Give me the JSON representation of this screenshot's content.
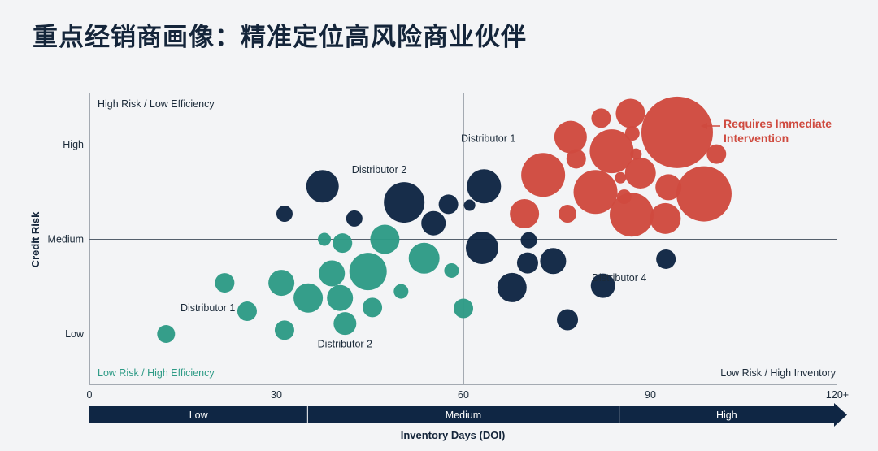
{
  "title": "重点经销商画像：精准定位高风险商业伙伴",
  "colors": {
    "navy": "#0f2644",
    "teal": "#2e9b86",
    "red": "#cf4a3f",
    "axis": "#55606d"
  },
  "chart_data": {
    "type": "scatter",
    "subtype": "bubble",
    "xlabel": "Inventory Days (DOI)",
    "ylabel": "Credit Risk",
    "xlim": [
      0,
      120
    ],
    "x_ticks": [
      "0",
      "30",
      "60",
      "90",
      "120+"
    ],
    "y_ticks": [
      "Low",
      "Medium",
      "High"
    ],
    "x_bands": [
      {
        "label": "Low",
        "from": 0,
        "to": 35
      },
      {
        "label": "Medium",
        "from": 35,
        "to": 85
      },
      {
        "label": "High",
        "from": 85,
        "to": 120
      }
    ],
    "quadrants": {
      "top_left": "High Risk / Low Efficiency",
      "bottom_left": "Low Risk / High Efficiency",
      "bottom_right": "Low Risk / High Inventory"
    },
    "callout": "Requires Immediate\nIntervention",
    "labels": [
      {
        "text": "Distributor 1",
        "x": 64,
        "y": 2.03
      },
      {
        "text": "Distributor 2",
        "x": 46.5,
        "y": 1.7
      },
      {
        "text": "Distributor 4",
        "x": 85,
        "y": 0.56
      },
      {
        "text": "Distributor 1",
        "x": 19,
        "y": 0.24
      },
      {
        "text": "Distributor 2",
        "x": 41,
        "y": -0.14
      }
    ],
    "series": [
      {
        "group": "teal",
        "points": [
          {
            "x": 12.3,
            "y": 0.0,
            "r": 11
          },
          {
            "x": 21.7,
            "y": 0.54,
            "r": 12
          },
          {
            "x": 25.3,
            "y": 0.24,
            "r": 12
          },
          {
            "x": 30.8,
            "y": 0.54,
            "r": 16
          },
          {
            "x": 31.3,
            "y": 0.04,
            "r": 12
          },
          {
            "x": 35.1,
            "y": 0.38,
            "r": 18
          },
          {
            "x": 37.7,
            "y": 0.0,
            "r": 0
          },
          {
            "x": 37.7,
            "y": 1.0,
            "r": 8
          },
          {
            "x": 38.9,
            "y": 0.64,
            "r": 16
          },
          {
            "x": 40.2,
            "y": 0.38,
            "r": 16
          },
          {
            "x": 40.6,
            "y": 0.96,
            "r": 12
          },
          {
            "x": 41.0,
            "y": 0.11,
            "r": 14
          },
          {
            "x": 44.7,
            "y": 0.66,
            "r": 23
          },
          {
            "x": 45.4,
            "y": 0.28,
            "r": 12
          },
          {
            "x": 47.4,
            "y": 1.0,
            "r": 18
          },
          {
            "x": 50.0,
            "y": 0.45,
            "r": 9
          },
          {
            "x": 53.7,
            "y": 0.8,
            "r": 19
          },
          {
            "x": 58.1,
            "y": 0.67,
            "r": 9
          },
          {
            "x": 60.0,
            "y": 0.27,
            "r": 12
          }
        ]
      },
      {
        "group": "navy",
        "points": [
          {
            "x": 31.3,
            "y": 1.27,
            "r": 10
          },
          {
            "x": 37.4,
            "y": 1.56,
            "r": 20
          },
          {
            "x": 42.5,
            "y": 1.22,
            "r": 10
          },
          {
            "x": 50.5,
            "y": 1.39,
            "r": 25
          },
          {
            "x": 55.2,
            "y": 1.17,
            "r": 15
          },
          {
            "x": 57.6,
            "y": 1.37,
            "r": 12
          },
          {
            "x": 61.0,
            "y": 1.36,
            "r": 7
          },
          {
            "x": 63.0,
            "y": 0.91,
            "r": 20
          },
          {
            "x": 63.3,
            "y": 1.56,
            "r": 21
          },
          {
            "x": 67.8,
            "y": 0.49,
            "r": 18
          },
          {
            "x": 70.5,
            "y": 0.99,
            "r": 10
          },
          {
            "x": 70.3,
            "y": 0.75,
            "r": 13
          },
          {
            "x": 74.4,
            "y": 0.77,
            "r": 16
          },
          {
            "x": 76.7,
            "y": 0.15,
            "r": 13
          },
          {
            "x": 82.4,
            "y": 0.51,
            "r": 15
          },
          {
            "x": 92.5,
            "y": 0.79,
            "r": 12
          }
        ]
      },
      {
        "group": "red",
        "points": [
          {
            "x": 69.8,
            "y": 1.27,
            "r": 18
          },
          {
            "x": 72.8,
            "y": 1.68,
            "r": 27
          },
          {
            "x": 76.7,
            "y": 1.27,
            "r": 11
          },
          {
            "x": 77.2,
            "y": 2.08,
            "r": 20
          },
          {
            "x": 78.1,
            "y": 1.85,
            "r": 12
          },
          {
            "x": 81.2,
            "y": 1.5,
            "r": 27
          },
          {
            "x": 82.1,
            "y": 2.28,
            "r": 12
          },
          {
            "x": 83.8,
            "y": 1.93,
            "r": 27
          },
          {
            "x": 85.2,
            "y": 1.65,
            "r": 7
          },
          {
            "x": 85.8,
            "y": 1.45,
            "r": 9
          },
          {
            "x": 86.8,
            "y": 2.33,
            "r": 18
          },
          {
            "x": 87.0,
            "y": 1.26,
            "r": 27
          },
          {
            "x": 87.1,
            "y": 2.12,
            "r": 9
          },
          {
            "x": 87.7,
            "y": 1.9,
            "r": 7
          },
          {
            "x": 88.4,
            "y": 1.7,
            "r": 19
          },
          {
            "x": 92.4,
            "y": 1.22,
            "r": 19
          },
          {
            "x": 92.9,
            "y": 1.55,
            "r": 16
          },
          {
            "x": 94.3,
            "y": 2.13,
            "r": 44
          },
          {
            "x": 98.6,
            "y": 1.48,
            "r": 34
          },
          {
            "x": 100.6,
            "y": 1.9,
            "r": 12
          }
        ]
      }
    ]
  }
}
